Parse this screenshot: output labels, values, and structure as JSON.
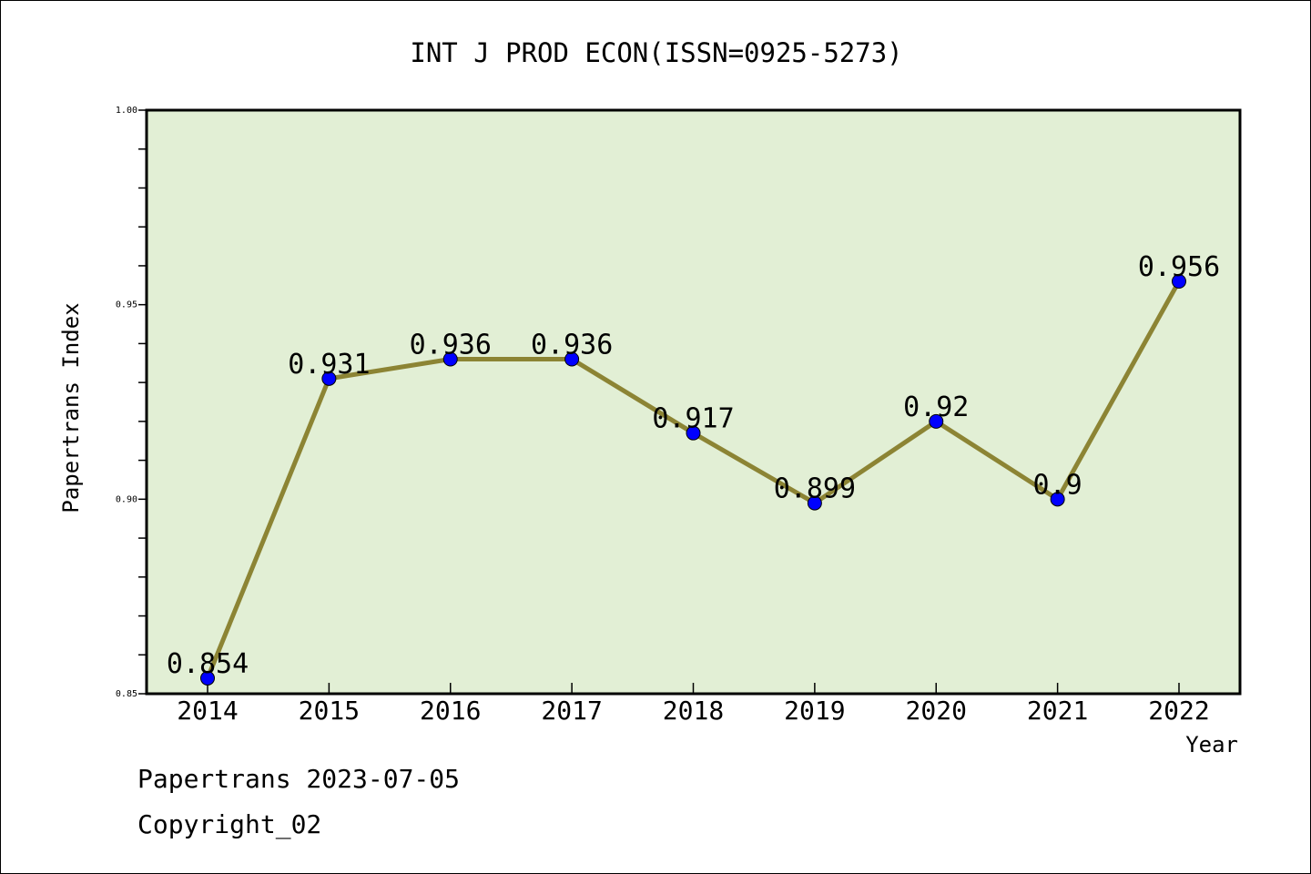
{
  "chart_data": {
    "type": "line",
    "title": "INT J PROD ECON(ISSN=0925-5273)",
    "xlabel": "Year",
    "ylabel": "Papertrans Index",
    "categories": [
      "2014",
      "2015",
      "2016",
      "2017",
      "2018",
      "2019",
      "2020",
      "2021",
      "2022"
    ],
    "series": [
      {
        "values": [
          0.854,
          0.931,
          0.936,
          0.936,
          0.917,
          0.899,
          0.92,
          0.9,
          0.956
        ],
        "labels": [
          "0.854",
          "0.931",
          "0.936",
          "0.936",
          "0.917",
          "0.899",
          "0.92",
          "0.9",
          "0.956"
        ]
      }
    ],
    "ylim": [
      0.85,
      1.0
    ],
    "y_major_ticks": [
      "0.85",
      "0.90",
      "0.95",
      "1.00"
    ],
    "grid": false,
    "colors": {
      "plot_background": "#e2efd5",
      "line": "#8c8434",
      "marker": "#0000ff",
      "axes": "#000000"
    }
  },
  "footer": {
    "line1": "Papertrans 2023-07-05",
    "line2": "Copyright_02"
  }
}
